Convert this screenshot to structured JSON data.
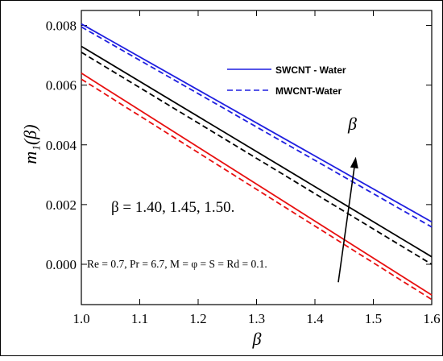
{
  "chart_data": {
    "type": "line",
    "xlabel": "β",
    "ylabel": "m₁(β)",
    "xlim": [
      1.0,
      1.6
    ],
    "ylim": [
      -0.00135,
      0.0085
    ],
    "x_ticks": [
      "1.0",
      "1.1",
      "1.2",
      "1.3",
      "1.4",
      "1.5",
      "1.6"
    ],
    "y_ticks": [
      "0.000",
      "0.002",
      "0.004",
      "0.006",
      "0.008"
    ],
    "x_tick_values": [
      1.0,
      1.1,
      1.2,
      1.3,
      1.4,
      1.5,
      1.6
    ],
    "y_tick_values": [
      0.0,
      0.002,
      0.004,
      0.006,
      0.008
    ],
    "legend_position": "top-right",
    "legend": [
      {
        "label": "SWCNT - Water",
        "color": "#1f1fe0",
        "dash": "solid"
      },
      {
        "label": "MWCNT-Water",
        "color": "#1f1fe0",
        "dash": "dashed"
      }
    ],
    "series": [
      {
        "color": "#1f1fe0",
        "dash": "solid",
        "x": [
          1.0,
          1.6
        ],
        "y": [
          0.00805,
          0.00142
        ]
      },
      {
        "color": "#1f1fe0",
        "dash": "dashed",
        "x": [
          1.0,
          1.6
        ],
        "y": [
          0.00795,
          0.00125
        ]
      },
      {
        "color": "#000000",
        "dash": "solid",
        "x": [
          1.0,
          1.6
        ],
        "y": [
          0.0073,
          0.00025
        ]
      },
      {
        "color": "#000000",
        "dash": "dashed",
        "x": [
          1.0,
          1.6
        ],
        "y": [
          0.0071,
          0.0
        ]
      },
      {
        "color": "#e81010",
        "dash": "solid",
        "x": [
          1.0,
          1.6
        ],
        "y": [
          0.0064,
          -0.00103
        ]
      },
      {
        "color": "#e81010",
        "dash": "dashed",
        "x": [
          1.0,
          1.6
        ],
        "y": [
          0.0062,
          -0.00118
        ]
      }
    ],
    "arrow": {
      "from": [
        1.44,
        -0.0006
      ],
      "to": [
        1.47,
        0.0036
      ],
      "label": "β"
    },
    "annotations": {
      "beta_values": "β = 1.40, 1.45, 1.50.",
      "parameters": "Re = 0.7, Pr = 6.7, M = φ = S = Rd = 0.1."
    }
  }
}
